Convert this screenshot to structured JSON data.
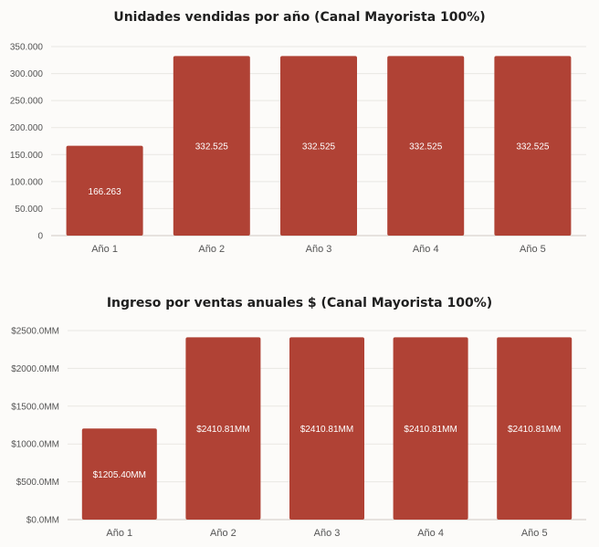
{
  "colors": {
    "bar": "#b04235",
    "background": "#fcfbf9"
  },
  "chart_data": [
    {
      "type": "bar",
      "title": "Unidades vendidas por año (Canal Mayorista 100%)",
      "categories": [
        "Año 1",
        "Año 2",
        "Año 3",
        "Año 4",
        "Año 5"
      ],
      "values": [
        166263,
        332525,
        332525,
        332525,
        332525
      ],
      "value_labels": [
        "166.263",
        "332.525",
        "332.525",
        "332.525",
        "332.525"
      ],
      "ylim": [
        0,
        350000
      ],
      "yticks": [
        0,
        50000,
        100000,
        150000,
        200000,
        250000,
        300000,
        350000
      ],
      "ytick_labels": [
        "0",
        "50.000",
        "100.000",
        "150.000",
        "200.000",
        "250.000",
        "300.000",
        "350.000"
      ],
      "grid": true,
      "legend": "none"
    },
    {
      "type": "bar",
      "title": "Ingreso por ventas anuales $ (Canal Mayorista 100%)",
      "categories": [
        "Año 1",
        "Año 2",
        "Año 3",
        "Año 4",
        "Año 5"
      ],
      "values": [
        1205.4,
        2410.81,
        2410.81,
        2410.81,
        2410.81
      ],
      "value_labels": [
        "$1205.40MM",
        "$2410.81MM",
        "$2410.81MM",
        "$2410.81MM",
        "$2410.81MM"
      ],
      "ylim": [
        0,
        2500
      ],
      "yticks": [
        0,
        500,
        1000,
        1500,
        2000,
        2500
      ],
      "ytick_labels": [
        "$0.0MM",
        "$500.0MM",
        "$1000.0MM",
        "$1500.0MM",
        "$2000.0MM",
        "$2500.0MM"
      ],
      "grid": true,
      "legend": "none"
    }
  ]
}
